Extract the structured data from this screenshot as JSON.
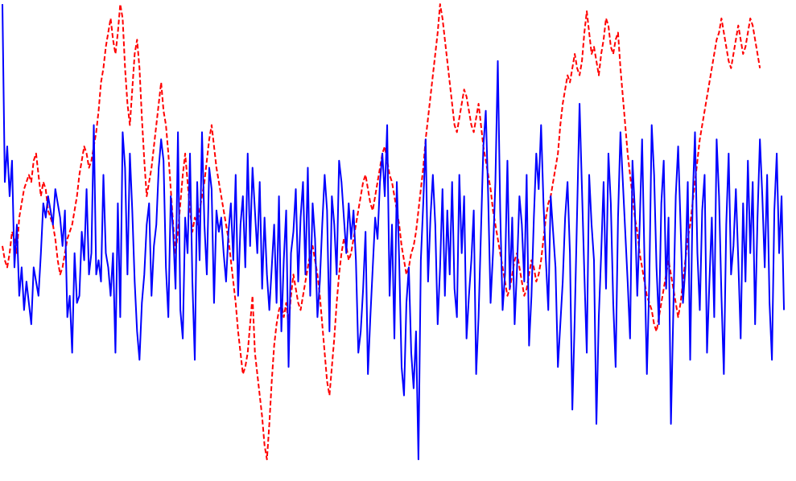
{
  "chart_data": {
    "type": "line",
    "title": "",
    "xlabel": "",
    "ylabel": "",
    "grid": false,
    "legend": "none",
    "axes_visible": false,
    "xlim": [
      0,
      329
    ],
    "ylim": [
      -3.2,
      3.2
    ],
    "series": [
      {
        "style": "solid",
        "color": "#0000ff",
        "x_start": 0,
        "x_step": 1,
        "values": [
          3.3,
          0.8,
          1.3,
          0.6,
          1.1,
          -0.4,
          0.2,
          -0.8,
          -0.4,
          -1.0,
          -0.6,
          -0.9,
          -1.2,
          -0.4,
          -0.6,
          -0.8,
          -0.2,
          0.5,
          0.3,
          0.6,
          0.4,
          0.2,
          0.7,
          0.5,
          0.3,
          -0.1,
          0.4,
          -1.1,
          -0.8,
          -1.6,
          -0.2,
          -0.9,
          -0.8,
          0.1,
          -0.3,
          0.7,
          -0.5,
          -0.2,
          1.6,
          -0.5,
          -0.3,
          -0.6,
          0.9,
          -0.2,
          -0.4,
          -0.8,
          -0.2,
          -1.6,
          0.5,
          -1.1,
          1.5,
          1.0,
          -0.5,
          1.2,
          0.4,
          -0.6,
          -1.3,
          -1.7,
          -0.9,
          -0.5,
          0.2,
          0.5,
          -0.8,
          -0.1,
          0.2,
          1.0,
          1.4,
          1.1,
          -0.4,
          -1.1,
          0.6,
          0.1,
          -0.7,
          1.5,
          -1.0,
          -1.4,
          0.3,
          -0.2,
          1.2,
          -0.6,
          -1.7,
          0.8,
          -0.3,
          1.5,
          0.2,
          -0.5,
          1.0,
          0.7,
          -0.9,
          0.4,
          0.1,
          0.3,
          -0.2,
          -0.6,
          0.1,
          0.5,
          -0.3,
          0.9,
          -0.8,
          0.2,
          0.6,
          -0.4,
          1.2,
          -0.1,
          1.0,
          0.4,
          -0.2,
          0.8,
          -0.7,
          0.3,
          -0.5,
          -1.0,
          -0.4,
          0.2,
          -0.9,
          0.6,
          -1.3,
          -0.3,
          0.4,
          -1.8,
          -0.2,
          0.1,
          0.7,
          -0.6,
          0.3,
          0.8,
          -0.5,
          1.0,
          -0.8,
          0.5,
          0.0,
          -1.1,
          -0.6,
          0.2,
          0.9,
          0.4,
          -1.3,
          0.6,
          0.2,
          -0.5,
          1.1,
          0.8,
          0.3,
          -0.2,
          0.5,
          0.0,
          0.4,
          -0.3,
          -1.6,
          -1.3,
          -0.7,
          0.1,
          -1.9,
          -1.1,
          -0.4,
          0.3,
          0.0,
          0.8,
          1.2,
          0.6,
          1.6,
          -0.8,
          0.2,
          -1.4,
          0.8,
          -0.3,
          -1.8,
          -2.2,
          -0.9,
          -0.4,
          -1.6,
          -2.1,
          -1.3,
          -3.1,
          -0.3,
          0.5,
          1.4,
          -0.6,
          0.3,
          0.9,
          0.2,
          -1.2,
          -0.4,
          0.7,
          -0.8,
          0.4,
          -0.5,
          0.8,
          -0.7,
          -1.1,
          0.9,
          -0.2,
          0.6,
          -1.4,
          -0.8,
          -0.3,
          0.4,
          -1.9,
          -1.1,
          0.1,
          1.3,
          1.8,
          0.6,
          -0.9,
          -0.2,
          0.8,
          2.5,
          0.4,
          -1.0,
          -0.5,
          1.1,
          -0.7,
          0.3,
          -1.2,
          -0.4,
          0.6,
          0.2,
          -0.6,
          0.9,
          -1.5,
          -0.8,
          0.3,
          1.2,
          0.7,
          1.6,
          0.5,
          -0.3,
          -1.0,
          0.6,
          0.1,
          -0.4,
          -1.8,
          -1.2,
          -0.6,
          0.3,
          0.8,
          -0.2,
          -2.4,
          -1.1,
          0.4,
          1.9,
          0.7,
          -0.5,
          -1.6,
          0.9,
          0.2,
          -0.3,
          -2.6,
          -1.1,
          -0.2,
          0.8,
          -0.7,
          1.2,
          0.5,
          -0.9,
          -1.8,
          0.3,
          1.5,
          0.8,
          0.1,
          -0.6,
          -1.4,
          1.1,
          0.4,
          -0.8,
          0.2,
          1.4,
          -0.3,
          -1.9,
          -0.6,
          1.6,
          0.9,
          -0.4,
          -1.2,
          0.5,
          1.1,
          -0.7,
          0.3,
          -2.6,
          -1.0,
          0.6,
          1.3,
          0.2,
          -0.9,
          -0.4,
          0.8,
          -1.7,
          0.5,
          1.5,
          -0.2,
          -1.0,
          0.4,
          0.9,
          -1.6,
          -0.6,
          0.3,
          -1.1,
          1.4,
          0.6,
          -0.8,
          -1.9,
          0.2,
          1.2,
          -0.5,
          -0.1,
          0.7,
          -0.3,
          -1.4,
          0.5,
          -0.6,
          1.1,
          -0.2,
          0.8,
          -1.2,
          0.3,
          1.4,
          0.6,
          -0.4,
          0.9,
          -0.9,
          -1.7,
          0.4,
          1.2,
          -0.2,
          0.6,
          -1.0
        ]
      },
      {
        "style": "dashed",
        "color": "#ff0000",
        "x_start": 0,
        "x_step": 1,
        "values": [
          -0.1,
          -0.3,
          -0.4,
          -0.2,
          0.1,
          0.0,
          -0.2,
          0.3,
          0.5,
          0.7,
          0.8,
          0.9,
          0.8,
          1.1,
          1.2,
          0.9,
          0.6,
          0.8,
          0.7,
          0.4,
          0.3,
          0.2,
          0.0,
          -0.3,
          -0.5,
          -0.4,
          -0.2,
          0.0,
          0.1,
          0.2,
          0.4,
          0.6,
          0.9,
          1.1,
          1.3,
          1.2,
          1.0,
          1.1,
          1.3,
          1.5,
          1.8,
          2.2,
          2.4,
          2.7,
          2.9,
          3.1,
          2.8,
          2.6,
          2.9,
          3.3,
          3.1,
          2.4,
          1.9,
          1.6,
          2.1,
          2.6,
          2.8,
          2.4,
          1.7,
          1.1,
          0.6,
          0.8,
          1.0,
          1.3,
          1.6,
          1.9,
          2.2,
          1.8,
          1.6,
          1.2,
          0.7,
          0.2,
          -0.2,
          0.1,
          0.5,
          0.9,
          1.2,
          0.8,
          0.4,
          0.1,
          0.3,
          0.2,
          0.4,
          0.6,
          0.8,
          1.1,
          1.4,
          1.6,
          1.3,
          1.0,
          0.8,
          0.6,
          0.4,
          0.2,
          0.0,
          -0.3,
          -0.6,
          -0.9,
          -1.3,
          -1.6,
          -1.9,
          -1.8,
          -1.6,
          -1.2,
          -0.8,
          -1.6,
          -1.9,
          -2.2,
          -2.5,
          -2.9,
          -3.1,
          -2.6,
          -2.0,
          -1.5,
          -1.2,
          -1.0,
          -0.9,
          -1.1,
          -0.9,
          -1.2,
          -0.8,
          -0.5,
          -0.7,
          -0.9,
          -1.0,
          -0.8,
          -0.6,
          -0.4,
          -0.2,
          -0.1,
          -0.3,
          -0.5,
          -0.8,
          -1.2,
          -1.6,
          -2.0,
          -2.2,
          -1.8,
          -1.4,
          -0.9,
          -0.5,
          -0.2,
          0.0,
          -0.1,
          -0.3,
          -0.2,
          0.0,
          0.2,
          0.4,
          0.6,
          0.8,
          0.9,
          0.7,
          0.5,
          0.4,
          0.6,
          0.8,
          1.0,
          1.2,
          1.3,
          1.1,
          0.9,
          0.8,
          0.6,
          0.4,
          0.2,
          -0.1,
          -0.3,
          -0.5,
          -0.4,
          -0.2,
          -0.1,
          0.1,
          0.4,
          0.7,
          1.0,
          1.4,
          1.7,
          2.0,
          2.3,
          2.6,
          2.9,
          3.3,
          3.1,
          2.8,
          2.5,
          2.2,
          1.9,
          1.6,
          1.5,
          1.7,
          1.9,
          2.1,
          2.0,
          1.8,
          1.6,
          1.5,
          1.7,
          1.9,
          1.6,
          1.3,
          1.1,
          0.9,
          0.7,
          0.4,
          0.2,
          0.0,
          -0.2,
          -0.4,
          -0.6,
          -0.8,
          -0.7,
          -0.5,
          -0.3,
          -0.2,
          -0.4,
          -0.6,
          -0.8,
          -0.7,
          -0.5,
          -0.3,
          -0.4,
          -0.6,
          -0.5,
          -0.3,
          0.0,
          0.3,
          0.5,
          0.6,
          0.8,
          1.0,
          1.2,
          1.6,
          1.9,
          2.1,
          2.3,
          2.2,
          2.4,
          2.6,
          2.4,
          2.3,
          2.5,
          2.9,
          3.2,
          2.9,
          2.6,
          2.7,
          2.5,
          2.3,
          2.6,
          2.8,
          3.1,
          3.0,
          2.7,
          2.6,
          2.8,
          2.9,
          2.4,
          2.0,
          1.6,
          1.2,
          0.9,
          0.6,
          0.3,
          0.1,
          -0.2,
          -0.4,
          -0.6,
          -0.8,
          -0.9,
          -1.0,
          -1.2,
          -1.3,
          -1.1,
          -0.9,
          -0.7,
          -0.5,
          -0.3,
          -0.5,
          -0.7,
          -0.9,
          -1.1,
          -0.9,
          -0.6,
          -0.3,
          0.0,
          0.2,
          0.5,
          0.8,
          1.1,
          1.4,
          1.6,
          1.8,
          2.0,
          2.2,
          2.4,
          2.6,
          2.8,
          2.9,
          3.1,
          2.9,
          2.7,
          2.5,
          2.4,
          2.6,
          2.8,
          3.0,
          2.8,
          2.6,
          2.7,
          2.9,
          3.1,
          3.0,
          2.8,
          2.6,
          2.4
        ]
      }
    ]
  }
}
